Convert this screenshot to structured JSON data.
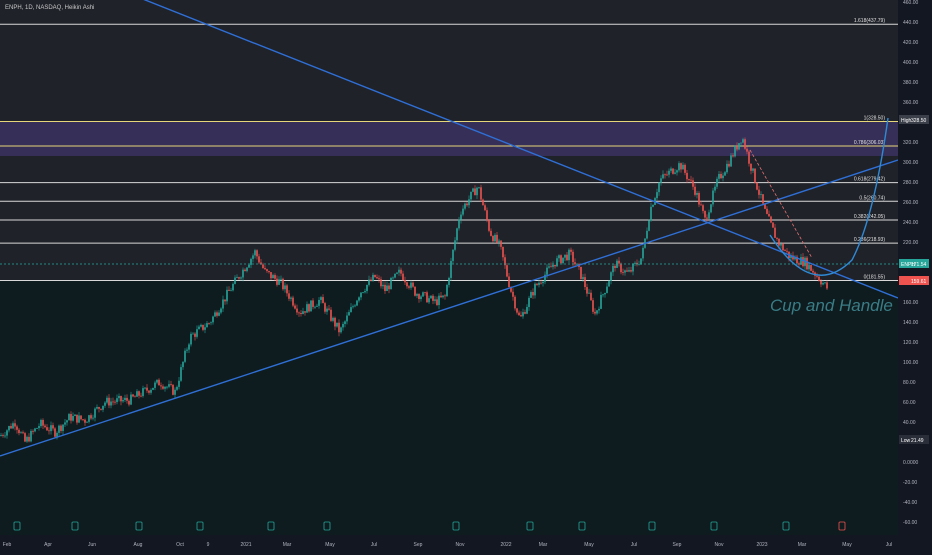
{
  "header": {
    "symbol_line": "ENPH, 1D, NASDAQ, Heikin Ashi"
  },
  "annotation": {
    "pattern_label": "Cup and Handle"
  },
  "colors": {
    "background_upper": "#1f2229",
    "background_lower": "#0e1c1f",
    "fib_zone": "#3b3160",
    "fib_line": "#d8d8d8",
    "fib_top_line": "#e6d77a",
    "trendline": "#2f6fd6",
    "candle_up": "#26a69a",
    "candle_down": "#ef5350",
    "cup": "#2f8ad6",
    "price_dotted": "#26a69a"
  },
  "chart_data": {
    "type": "candlestick",
    "x_axis": {
      "tick_labels": [
        "Feb",
        "Apr",
        "Jun",
        "Aug",
        "Oct",
        "9",
        "2021",
        "Mar",
        "May",
        "Jul",
        "Sep",
        "Nov",
        "2022",
        "Mar",
        "May",
        "Jul",
        "Sep",
        "Nov",
        "2023",
        "Mar",
        "May",
        "Jul"
      ]
    },
    "y_axis": {
      "ticks": [
        -60,
        -40,
        -20,
        0,
        20,
        40,
        60,
        80,
        100,
        120,
        140,
        160,
        180,
        200,
        220,
        240,
        260,
        280,
        300,
        320,
        340,
        360,
        380,
        400,
        420,
        440,
        460
      ],
      "tick_labels": [
        "-60.00",
        "-40.00",
        "-20.00",
        "0.0000",
        "20.00",
        "40.00",
        "60.00",
        "80.00",
        "100.00",
        "120.00",
        "140.00",
        "160.00",
        "180.00",
        "200.00",
        "220.00",
        "240.00",
        "260.00",
        "280.00",
        "300.00",
        "320.00",
        "340.00",
        "360.00",
        "380.00",
        "400.00",
        "420.00",
        "440.00",
        "460.00"
      ],
      "range": [
        -70,
        460
      ],
      "high_label": "High",
      "high_value": "328.50",
      "low_label": "Low",
      "low_value": "21.49",
      "last_price_label": "ENPH",
      "last_price": "171.54",
      "tag_price": "159.61"
    },
    "fib_levels": [
      {
        "ratio": 1.618,
        "label": "1.618(437.79)",
        "price": 437.79
      },
      {
        "ratio": 1.0,
        "label": "1(328.50)",
        "price": 328.5
      },
      {
        "ratio": 0.786,
        "label": "0.786(306.03)",
        "price": 306.03
      },
      {
        "ratio": 0.618,
        "label": "0.618(279.42)",
        "price": 279.42
      },
      {
        "ratio": 0.5,
        "label": "0.5(260.74)",
        "price": 260.74
      },
      {
        "ratio": 0.382,
        "label": "0.382(242.05)",
        "price": 242.05
      },
      {
        "ratio": 0.236,
        "label": "0.236(218.93)",
        "price": 218.93
      },
      {
        "ratio": 0,
        "label": "0(181.55)",
        "price": 181.55
      }
    ],
    "price_series_approx": [
      [
        0,
        26
      ],
      [
        15,
        40
      ],
      [
        25,
        20
      ],
      [
        40,
        38
      ],
      [
        55,
        30
      ],
      [
        70,
        45
      ],
      [
        85,
        42
      ],
      [
        105,
        60
      ],
      [
        130,
        62
      ],
      [
        160,
        80
      ],
      [
        175,
        70
      ],
      [
        190,
        125
      ],
      [
        210,
        140
      ],
      [
        235,
        180
      ],
      [
        255,
        210
      ],
      [
        265,
        190
      ],
      [
        280,
        180
      ],
      [
        300,
        150
      ],
      [
        320,
        162
      ],
      [
        340,
        130
      ],
      [
        360,
        170
      ],
      [
        375,
        185
      ],
      [
        385,
        172
      ],
      [
        400,
        190
      ],
      [
        415,
        170
      ],
      [
        435,
        160
      ],
      [
        445,
        165
      ],
      [
        460,
        250
      ],
      [
        478,
        276
      ],
      [
        490,
        230
      ],
      [
        500,
        215
      ],
      [
        510,
        175
      ],
      [
        520,
        142
      ],
      [
        535,
        175
      ],
      [
        555,
        200
      ],
      [
        570,
        208
      ],
      [
        582,
        185
      ],
      [
        595,
        148
      ],
      [
        615,
        198
      ],
      [
        628,
        188
      ],
      [
        642,
        205
      ],
      [
        650,
        252
      ],
      [
        660,
        282
      ],
      [
        680,
        298
      ],
      [
        695,
        272
      ],
      [
        705,
        242
      ],
      [
        718,
        282
      ],
      [
        730,
        302
      ],
      [
        742,
        326
      ],
      [
        752,
        292
      ],
      [
        765,
        250
      ],
      [
        778,
        220
      ],
      [
        790,
        205
      ],
      [
        805,
        200
      ],
      [
        818,
        185
      ],
      [
        828,
        173
      ]
    ]
  }
}
